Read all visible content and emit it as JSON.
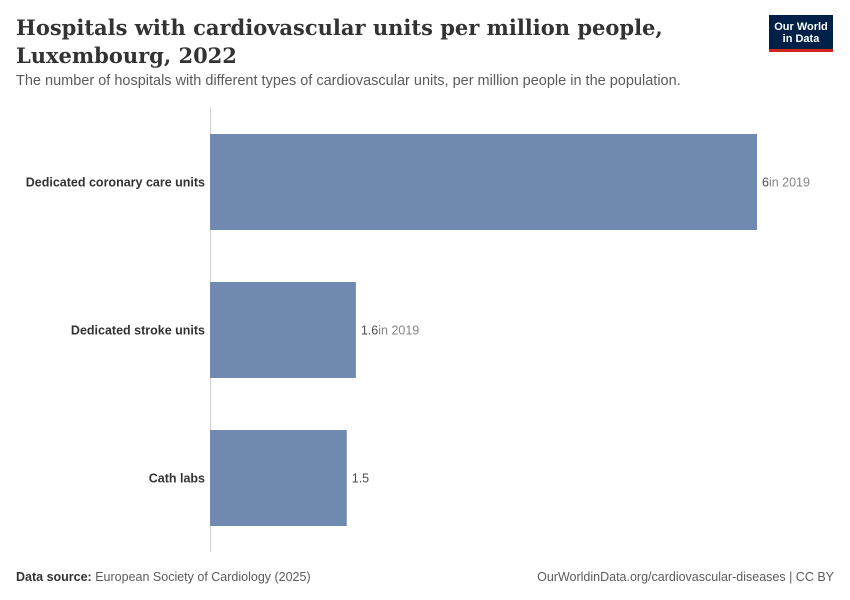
{
  "header": {
    "title": "Hospitals with cardiovascular units per million people, Luxembourg, 2022",
    "subtitle": "The number of hospitals with different types of cardiovascular units, per million people in the population."
  },
  "logo": {
    "line1": "Our World",
    "line2": "in Data"
  },
  "footer": {
    "source_label": "Data source:",
    "source_text": "European Society of Cardiology (2025)",
    "right_text": "OurWorldinData.org/cardiovascular-diseases | CC BY"
  },
  "colors": {
    "bar": "#6f89b0",
    "axis": "#cccccc",
    "label": "#333333",
    "note": "#858585"
  },
  "chart_data": {
    "type": "bar",
    "orientation": "horizontal",
    "categories": [
      "Dedicated coronary care units",
      "Dedicated stroke units",
      "Cath labs"
    ],
    "values": [
      6,
      1.6,
      1.5
    ],
    "value_labels": [
      "6",
      "1.6",
      "1.5"
    ],
    "year_notes": [
      "in 2019",
      "in 2019",
      ""
    ],
    "xlim": [
      0,
      6
    ]
  }
}
